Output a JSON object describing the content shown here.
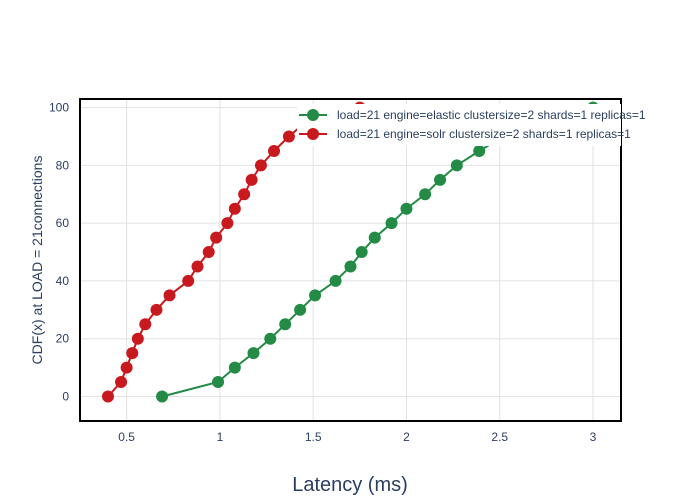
{
  "chart_data": {
    "type": "line",
    "title": "",
    "xlabel": "Latency (ms)",
    "ylabel": "CDF(x) at LOAD = 21connections",
    "xlim": [
      0.25,
      3.15
    ],
    "ylim": [
      -8.5,
      103
    ],
    "xticks": [
      0.5,
      1,
      1.5,
      2,
      2.5,
      3
    ],
    "xtick_labels": [
      "0.5",
      "1",
      "1.5",
      "2",
      "2.5",
      "3"
    ],
    "yticks": [
      0,
      20,
      40,
      60,
      80,
      100
    ],
    "ytick_labels": [
      "0",
      "20",
      "40",
      "60",
      "80",
      "100"
    ],
    "grid": true,
    "legend_position": "top-right",
    "series": [
      {
        "name": "load=21 engine=elastic clustersize=2 shards=1 replicas=1",
        "color": "#238b45",
        "x": [
          0.69,
          0.99,
          1.08,
          1.18,
          1.27,
          1.35,
          1.43,
          1.51,
          1.62,
          1.7,
          1.76,
          1.83,
          1.92,
          2.0,
          2.1,
          2.18,
          2.27,
          2.39,
          2.52,
          2.66,
          2.83,
          3.0
        ],
        "y": [
          0,
          5,
          10,
          15,
          20,
          25,
          30,
          35,
          40,
          45,
          50,
          55,
          60,
          65,
          70,
          75,
          80,
          85,
          90,
          95,
          99,
          100
        ]
      },
      {
        "name": "load=21 engine=solr clustersize=2 shards=1 replicas=1",
        "color": "#c8191e",
        "x": [
          0.4,
          0.47,
          0.5,
          0.53,
          0.56,
          0.6,
          0.66,
          0.73,
          0.83,
          0.88,
          0.94,
          0.98,
          1.04,
          1.08,
          1.13,
          1.17,
          1.22,
          1.29,
          1.37,
          1.46,
          1.58,
          1.75
        ],
        "y": [
          0,
          5,
          10,
          15,
          20,
          25,
          30,
          35,
          40,
          45,
          50,
          55,
          60,
          65,
          70,
          75,
          80,
          85,
          90,
          95,
          99,
          100
        ]
      }
    ]
  }
}
